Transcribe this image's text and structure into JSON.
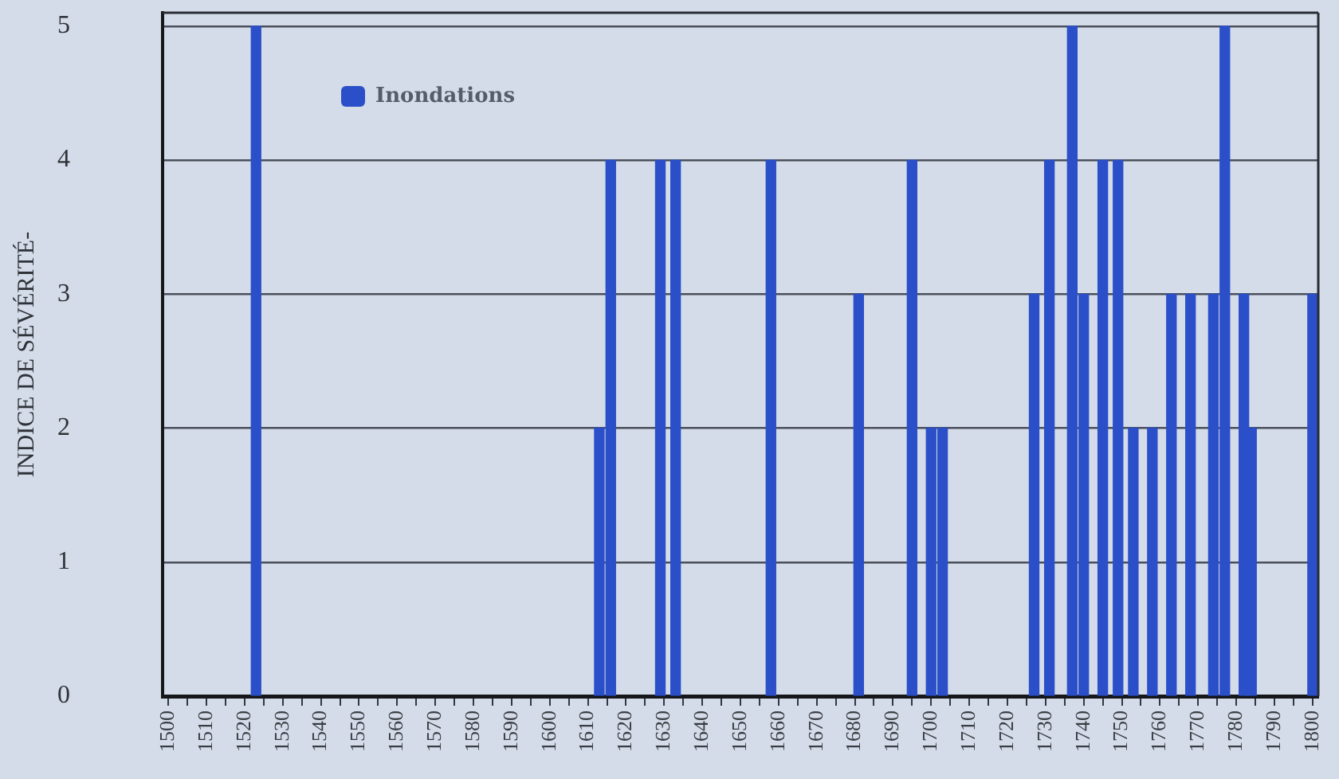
{
  "chart_data": {
    "type": "bar",
    "ylabel": "INDICE DE SÉVÉRITÉ-",
    "x": [
      1523,
      1613,
      1616,
      1629,
      1633,
      1658,
      1681,
      1695,
      1700,
      1703,
      1727,
      1731,
      1737,
      1740,
      1745,
      1749,
      1753,
      1758,
      1763,
      1768,
      1774,
      1777,
      1782,
      1784,
      1800
    ],
    "series": [
      {
        "name": "Inondations",
        "color": "#2b4fc9",
        "values": [
          5,
          2,
          4,
          4,
          4,
          4,
          3,
          4,
          2,
          2,
          3,
          4,
          5,
          3,
          4,
          4,
          2,
          2,
          3,
          3,
          3,
          5,
          3,
          2,
          3
        ]
      }
    ],
    "xlim": [
      1498.5,
      1801.5
    ],
    "xticks": [
      1500,
      {
        "value": 1505,
        "label": null
      },
      1510,
      {
        "value": 1515,
        "label": null
      },
      1520,
      {
        "value": 1525,
        "label": null
      },
      1530,
      {
        "value": 1535,
        "label": null
      },
      1540,
      {
        "value": 1545,
        "label": null
      },
      1550,
      {
        "value": 1555,
        "label": null
      },
      1560,
      {
        "value": 1565,
        "label": null
      },
      1570,
      {
        "value": 1575,
        "label": null
      },
      1580,
      {
        "value": 1585,
        "label": null
      },
      1590,
      {
        "value": 1595,
        "label": null
      },
      1600,
      {
        "value": 1605,
        "label": null
      },
      1610,
      {
        "value": 1615,
        "label": null
      },
      1620,
      {
        "value": 1625,
        "label": null
      },
      1630,
      {
        "value": 1635,
        "label": null
      },
      1640,
      {
        "value": 1645,
        "label": null
      },
      1650,
      {
        "value": 1655,
        "label": null
      },
      1660,
      {
        "value": 1665,
        "label": null
      },
      1670,
      {
        "value": 1675,
        "label": null
      },
      1680,
      {
        "value": 1685,
        "label": null
      },
      1690,
      {
        "value": 1695,
        "label": null
      },
      1700,
      {
        "value": 1705,
        "label": null
      },
      1710,
      {
        "value": 1715,
        "label": null
      },
      1720,
      {
        "value": 1725,
        "label": null
      },
      1730,
      {
        "value": 1735,
        "label": null
      },
      1740,
      {
        "value": 1745,
        "label": null
      },
      1750,
      {
        "value": 1755,
        "label": null
      },
      1760,
      {
        "value": 1765,
        "label": null
      },
      1770,
      {
        "value": 1775,
        "label": null
      },
      1780,
      {
        "value": 1785,
        "label": null
      },
      1790,
      {
        "value": 1795,
        "label": null
      },
      1800
    ],
    "ylim": [
      0,
      5.1
    ],
    "yticks": [
      0,
      1,
      2,
      3,
      4,
      5
    ],
    "grid": "y",
    "legend": "top left"
  }
}
